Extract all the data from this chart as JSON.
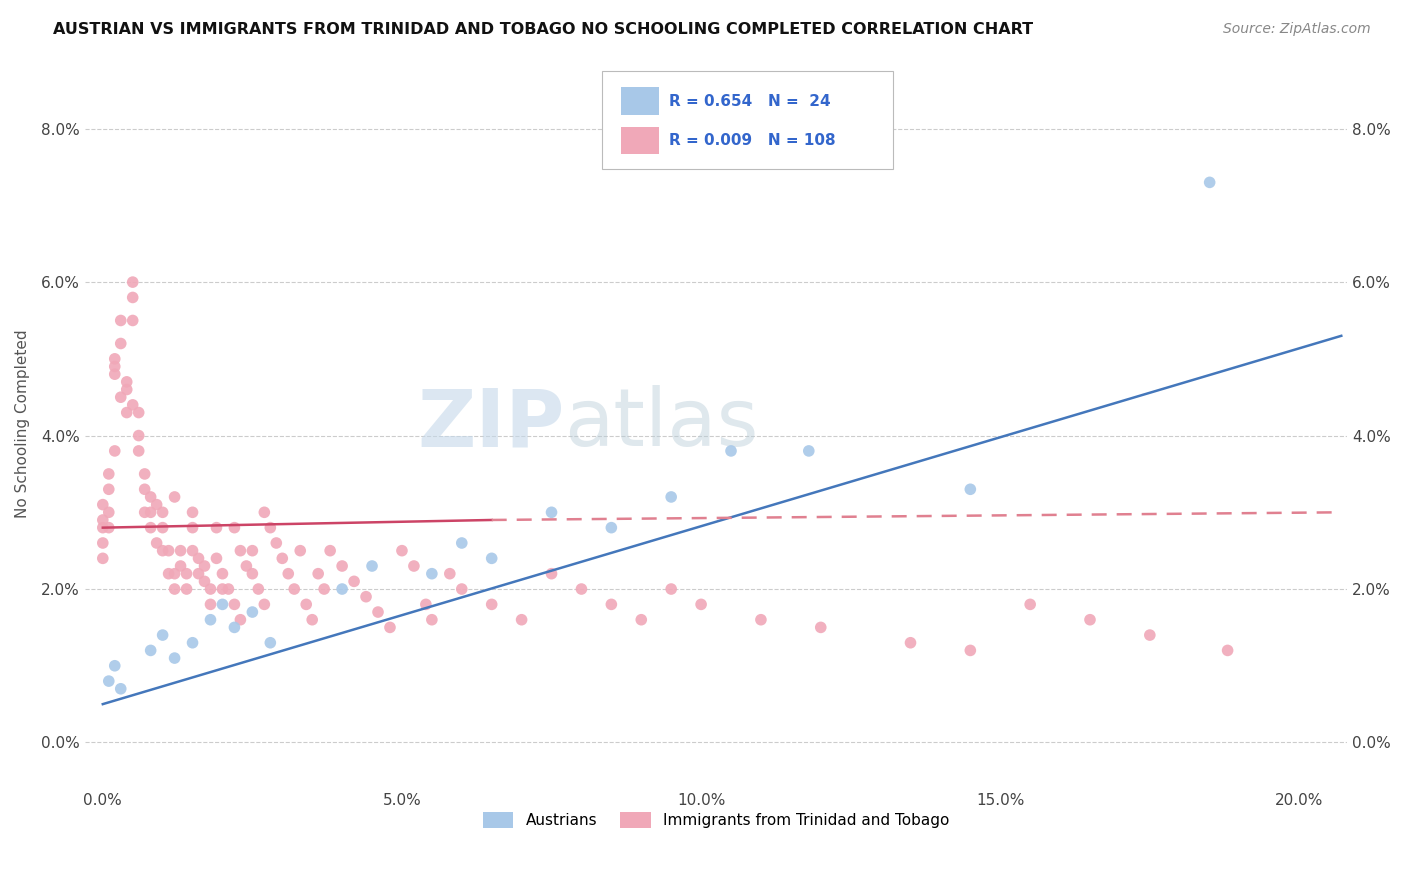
{
  "title": "AUSTRIAN VS IMMIGRANTS FROM TRINIDAD AND TOBAGO NO SCHOOLING COMPLETED CORRELATION CHART",
  "source": "Source: ZipAtlas.com",
  "xlabel_ticks": [
    "0.0%",
    "5.0%",
    "10.0%",
    "15.0%",
    "20.0%"
  ],
  "xlabel_vals": [
    0.0,
    0.05,
    0.1,
    0.15,
    0.2
  ],
  "ylabel": "No Schooling Completed",
  "ylabel_ticks": [
    "0.0%",
    "2.0%",
    "4.0%",
    "6.0%",
    "8.0%"
  ],
  "ylabel_vals": [
    0.0,
    0.02,
    0.04,
    0.06,
    0.08
  ],
  "xlim": [
    -0.003,
    0.208
  ],
  "ylim": [
    -0.006,
    0.089
  ],
  "blue_R": 0.654,
  "blue_N": 24,
  "pink_R": 0.009,
  "pink_N": 108,
  "blue_color": "#a8c8e8",
  "pink_color": "#f0a8b8",
  "blue_line_color": "#4477bb",
  "pink_line_color": "#cc4466",
  "pink_line_dash_color": "#e08090",
  "watermark_zip": "ZIP",
  "watermark_atlas": "atlas",
  "blue_scatter_x": [
    0.001,
    0.002,
    0.003,
    0.008,
    0.01,
    0.012,
    0.015,
    0.018,
    0.02,
    0.022,
    0.025,
    0.028,
    0.04,
    0.045,
    0.055,
    0.06,
    0.065,
    0.075,
    0.085,
    0.095,
    0.105,
    0.118,
    0.145,
    0.185
  ],
  "blue_scatter_y": [
    0.008,
    0.01,
    0.007,
    0.012,
    0.014,
    0.011,
    0.013,
    0.016,
    0.018,
    0.015,
    0.017,
    0.013,
    0.02,
    0.023,
    0.022,
    0.026,
    0.024,
    0.03,
    0.028,
    0.032,
    0.038,
    0.038,
    0.033,
    0.073
  ],
  "pink_scatter_x": [
    0.0,
    0.0,
    0.0,
    0.0,
    0.0,
    0.001,
    0.001,
    0.001,
    0.001,
    0.002,
    0.002,
    0.002,
    0.002,
    0.003,
    0.003,
    0.003,
    0.004,
    0.004,
    0.004,
    0.005,
    0.005,
    0.005,
    0.005,
    0.006,
    0.006,
    0.006,
    0.007,
    0.007,
    0.007,
    0.008,
    0.008,
    0.008,
    0.009,
    0.009,
    0.01,
    0.01,
    0.01,
    0.011,
    0.011,
    0.012,
    0.012,
    0.012,
    0.013,
    0.013,
    0.014,
    0.014,
    0.015,
    0.015,
    0.015,
    0.016,
    0.016,
    0.017,
    0.017,
    0.018,
    0.018,
    0.019,
    0.019,
    0.02,
    0.02,
    0.021,
    0.022,
    0.022,
    0.023,
    0.023,
    0.024,
    0.025,
    0.025,
    0.026,
    0.027,
    0.027,
    0.028,
    0.029,
    0.03,
    0.031,
    0.032,
    0.033,
    0.034,
    0.035,
    0.036,
    0.037,
    0.038,
    0.04,
    0.042,
    0.044,
    0.046,
    0.048,
    0.05,
    0.052,
    0.054,
    0.055,
    0.058,
    0.06,
    0.065,
    0.07,
    0.075,
    0.08,
    0.085,
    0.09,
    0.095,
    0.1,
    0.11,
    0.12,
    0.135,
    0.145,
    0.155,
    0.165,
    0.175,
    0.188
  ],
  "pink_scatter_y": [
    0.028,
    0.029,
    0.031,
    0.026,
    0.024,
    0.035,
    0.033,
    0.03,
    0.028,
    0.038,
    0.05,
    0.049,
    0.048,
    0.052,
    0.055,
    0.045,
    0.043,
    0.047,
    0.046,
    0.06,
    0.058,
    0.055,
    0.044,
    0.04,
    0.043,
    0.038,
    0.033,
    0.035,
    0.03,
    0.03,
    0.032,
    0.028,
    0.026,
    0.031,
    0.03,
    0.028,
    0.025,
    0.025,
    0.022,
    0.022,
    0.032,
    0.02,
    0.025,
    0.023,
    0.022,
    0.02,
    0.03,
    0.028,
    0.025,
    0.024,
    0.022,
    0.023,
    0.021,
    0.02,
    0.018,
    0.028,
    0.024,
    0.022,
    0.02,
    0.02,
    0.018,
    0.028,
    0.016,
    0.025,
    0.023,
    0.025,
    0.022,
    0.02,
    0.03,
    0.018,
    0.028,
    0.026,
    0.024,
    0.022,
    0.02,
    0.025,
    0.018,
    0.016,
    0.022,
    0.02,
    0.025,
    0.023,
    0.021,
    0.019,
    0.017,
    0.015,
    0.025,
    0.023,
    0.018,
    0.016,
    0.022,
    0.02,
    0.018,
    0.016,
    0.022,
    0.02,
    0.018,
    0.016,
    0.02,
    0.018,
    0.016,
    0.015,
    0.013,
    0.012,
    0.018,
    0.016,
    0.014,
    0.012
  ],
  "blue_line_x": [
    0.0,
    0.207
  ],
  "blue_line_y": [
    0.005,
    0.053
  ],
  "pink_solid_line_x": [
    0.0,
    0.065
  ],
  "pink_solid_line_y": [
    0.028,
    0.029
  ],
  "pink_dash_line_x": [
    0.065,
    0.207
  ],
  "pink_dash_line_y": [
    0.029,
    0.03
  ],
  "legend_labels": [
    "Austrians",
    "Immigrants from Trinidad and Tobago"
  ],
  "background_color": "#ffffff",
  "grid_color": "#cccccc",
  "title_color": "#111111",
  "source_color": "#888888",
  "tick_color": "#444444"
}
